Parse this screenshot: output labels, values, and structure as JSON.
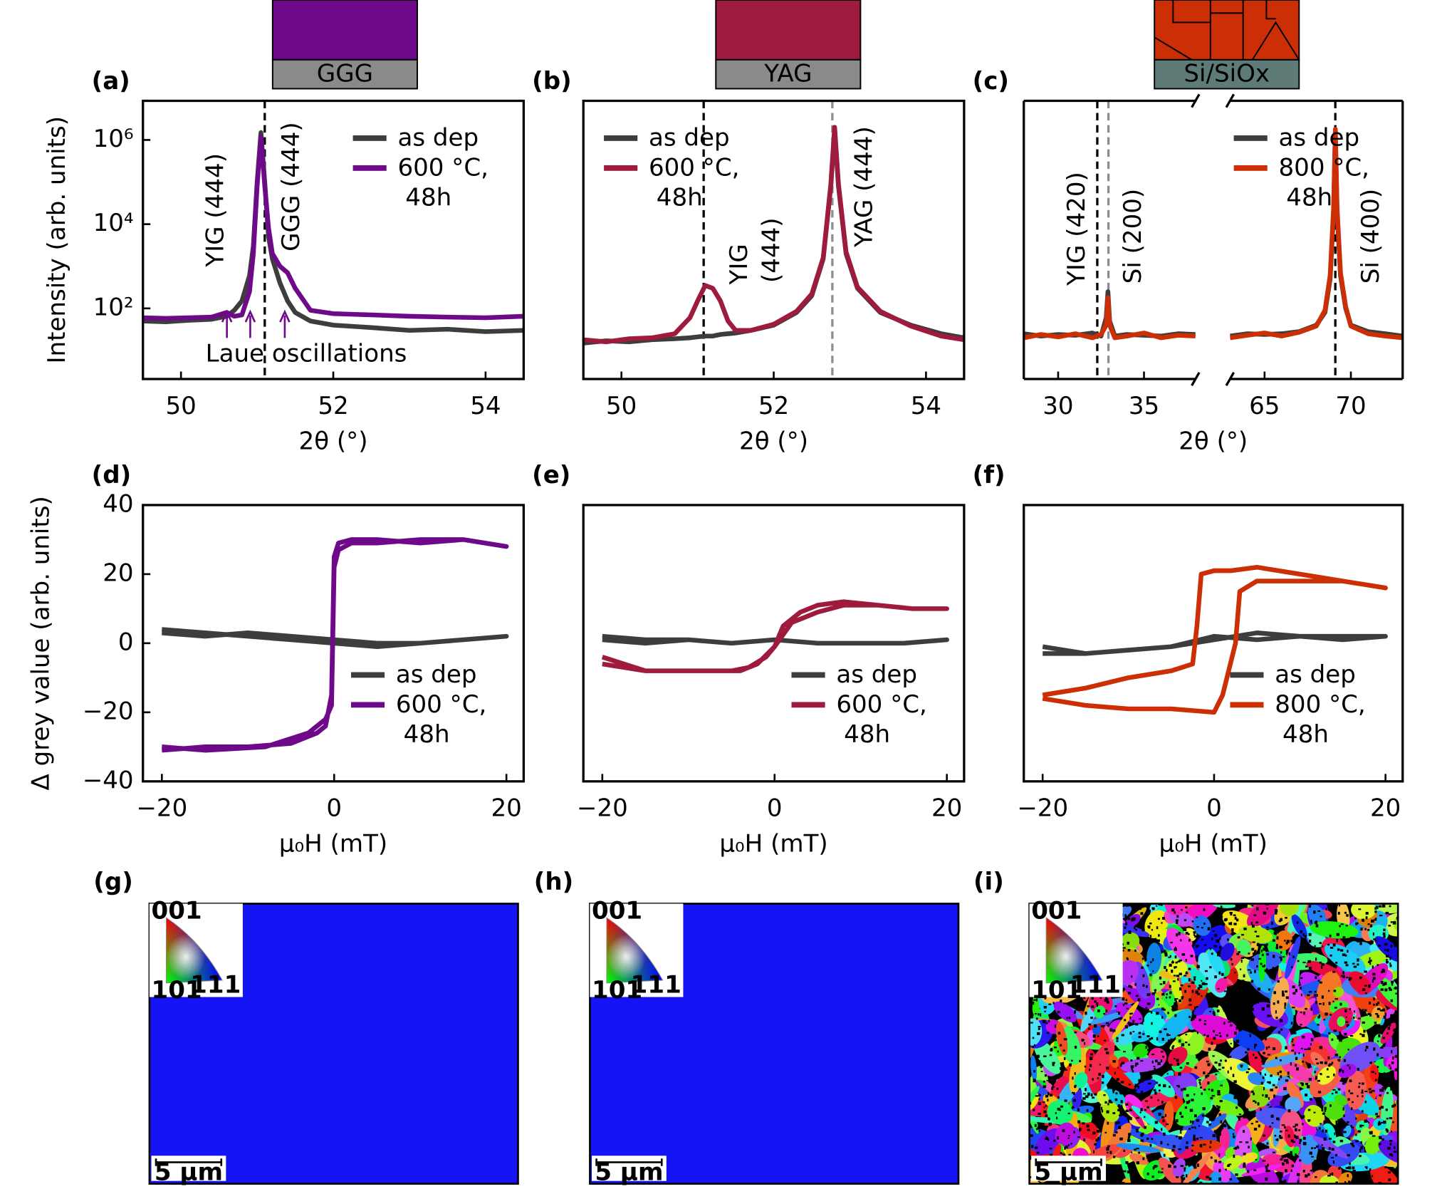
{
  "chart_data": [
    {
      "type": "line",
      "label": "(a)",
      "xlabel": "2θ (°)",
      "ylabel": "Intensity (arb. units)",
      "log_y": true,
      "xlim": [
        49.5,
        54.5
      ],
      "ylim": [
        2.1,
        8500000
      ],
      "xticks": [
        50,
        52,
        54
      ],
      "yticks": [
        {
          "value": 100,
          "label": "10²"
        },
        {
          "value": 10000,
          "label": "10⁴"
        },
        {
          "value": 1000000,
          "label": "10⁶"
        }
      ],
      "legend": "upper right",
      "vlines": [
        {
          "x": 51.1,
          "color": "#000000"
        }
      ],
      "annotations": [
        {
          "text": "YIG (444)",
          "color": "#000000"
        },
        {
          "text": "GGG (444)",
          "color": "#8c8c8c"
        },
        {
          "text": "Laue oscillations",
          "color": "#6e0a8a"
        }
      ],
      "series": [
        {
          "name": "as dep",
          "color": "#3d3d3d",
          "x": [
            49.5,
            49.8,
            50.1,
            50.4,
            50.6,
            50.7,
            50.8,
            50.9,
            50.95,
            51.0,
            51.05,
            51.1,
            51.15,
            51.2,
            51.3,
            51.4,
            51.5,
            51.7,
            52.0,
            52.5,
            53,
            53.5,
            54,
            54.5
          ],
          "values": [
            50,
            48,
            52,
            55,
            65,
            90,
            150,
            600,
            3000,
            100000,
            1500000,
            100000,
            5000,
            1500,
            400,
            150,
            80,
            50,
            40,
            35,
            30,
            32,
            28,
            30
          ]
        },
        {
          "name": "600 °C,\n 48h",
          "color": "#6e0a8a",
          "x": [
            49.5,
            49.8,
            50.1,
            50.4,
            50.6,
            50.7,
            50.8,
            50.9,
            50.95,
            51.0,
            51.05,
            51.1,
            51.15,
            51.2,
            51.3,
            51.4,
            51.5,
            51.7,
            52.0,
            52.5,
            53,
            53.5,
            54,
            54.5
          ],
          "values": [
            60,
            58,
            60,
            62,
            80,
            65,
            70,
            250,
            2000,
            80000,
            1200000,
            80000,
            8000,
            2000,
            1000,
            700,
            300,
            90,
            75,
            70,
            65,
            62,
            60,
            65
          ]
        }
      ]
    },
    {
      "type": "line",
      "label": "(b)",
      "xlabel": "2θ (°)",
      "log_y": true,
      "xlim": [
        49.5,
        54.5
      ],
      "ylim": [
        2.1,
        8500000
      ],
      "xticks": [
        50,
        52,
        54
      ],
      "legend": "upper left",
      "vlines": [
        {
          "x": 51.08,
          "color": "#000000"
        },
        {
          "x": 52.77,
          "color": "#8c8c8c"
        }
      ],
      "annotations": [
        {
          "text": "YIG",
          "color": "#000000"
        },
        {
          "text": "(444)",
          "color": "#000000"
        },
        {
          "text": "YAG (444)",
          "color": "#8c8c8c"
        }
      ],
      "series": [
        {
          "name": "as dep",
          "color": "#3d3d3d",
          "x": [
            49.5,
            49.8,
            50.1,
            50.4,
            50.7,
            50.9,
            51.0,
            51.1,
            51.2,
            51.3,
            51.4,
            51.5,
            51.7,
            52.0,
            52.3,
            52.5,
            52.65,
            52.75,
            52.8,
            52.85,
            52.95,
            53.1,
            53.4,
            53.8,
            54.2,
            54.5
          ],
          "values": [
            15,
            17,
            16,
            18,
            19,
            20,
            21,
            22,
            22,
            24,
            25,
            26,
            30,
            40,
            80,
            200,
            1500,
            80000,
            1800000,
            80000,
            2000,
            300,
            80,
            40,
            25,
            20
          ]
        },
        {
          "name": "600 °C,\n 48h",
          "color": "#9e1b3e",
          "x": [
            49.5,
            49.8,
            50.1,
            50.4,
            50.7,
            50.9,
            51.0,
            51.1,
            51.2,
            51.3,
            51.4,
            51.5,
            51.7,
            52.0,
            52.3,
            52.5,
            52.65,
            52.75,
            52.8,
            52.85,
            52.95,
            53.1,
            53.4,
            53.8,
            54.2,
            54.5
          ],
          "values": [
            18,
            16,
            19,
            20,
            25,
            60,
            150,
            350,
            300,
            150,
            50,
            30,
            30,
            42,
            85,
            220,
            1600,
            90000,
            2000000,
            90000,
            2200,
            320,
            85,
            38,
            22,
            18
          ]
        }
      ]
    },
    {
      "type": "line",
      "label": "(c)",
      "xlabel": "2θ (°)",
      "log_y": true,
      "xlim_segments": [
        [
          28,
          38
        ],
        [
          63,
          73
        ]
      ],
      "ylim": [
        2.1,
        8500000
      ],
      "xticks": [
        30,
        35,
        65,
        70
      ],
      "legend": "upper right",
      "vlines": [
        {
          "x": 32.28,
          "color": "#000000"
        },
        {
          "x": 32.93,
          "color": "#8c8c8c"
        },
        {
          "x": 69.1,
          "color": "#000000"
        }
      ],
      "annotations": [
        {
          "text": "YIG (420)",
          "color": "#000000"
        },
        {
          "text": "Si (200)",
          "color": "#8c8c8c"
        },
        {
          "text": "Si (400)",
          "color": "#8c8c8c"
        }
      ],
      "series": [
        {
          "name": "as dep",
          "color": "#3d3d3d",
          "x": [
            28,
            29,
            30,
            31,
            32,
            32.5,
            32.8,
            32.9,
            33.0,
            33.3,
            34,
            35,
            36,
            37,
            38,
            null,
            63,
            64,
            65,
            66,
            67,
            68,
            68.5,
            68.8,
            69.0,
            69.1,
            69.2,
            69.4,
            69.7,
            70,
            71,
            72,
            73
          ],
          "values": [
            25,
            22,
            24,
            23,
            26,
            22,
            60,
            250,
            50,
            22,
            24,
            23,
            22,
            25,
            24,
            null,
            22,
            25,
            24,
            25,
            28,
            40,
            80,
            500,
            20000,
            1500000,
            20000,
            600,
            100,
            40,
            28,
            25,
            22
          ]
        },
        {
          "name": "800 °C,\n 48h",
          "color": "#cc2e06",
          "x": [
            28,
            29,
            30,
            31,
            32,
            32.5,
            32.8,
            32.9,
            33.0,
            33.3,
            34,
            35,
            36,
            37,
            38,
            null,
            63,
            64,
            65,
            66,
            67,
            68,
            68.5,
            68.8,
            69.0,
            69.1,
            69.2,
            69.4,
            69.7,
            70,
            71,
            72,
            73
          ],
          "values": [
            20,
            24,
            21,
            25,
            20,
            24,
            40,
            180,
            40,
            20,
            22,
            26,
            20,
            23,
            22,
            null,
            20,
            23,
            26,
            22,
            27,
            38,
            90,
            600,
            25000,
            1800000,
            25000,
            700,
            110,
            38,
            25,
            22,
            20
          ]
        }
      ]
    },
    {
      "type": "line",
      "label": "(d)",
      "xlabel": "μ₀H (mT)",
      "ylabel": "Δ grey value (arb. units)",
      "xlim": [
        -22.2,
        22
      ],
      "ylim": [
        -40,
        40
      ],
      "xticks": [
        {
          "value": -20,
          "label": "−20"
        },
        0,
        20
      ],
      "yticks": [
        {
          "value": -40,
          "label": "−40"
        },
        {
          "value": -20,
          "label": "−20"
        },
        0,
        20,
        40
      ],
      "legend": "lower right",
      "series": [
        {
          "name": "as dep",
          "color": "#3d3d3d",
          "x": [
            -20,
            -15,
            -10,
            -5,
            0,
            5,
            10,
            15,
            20,
            15,
            10,
            5,
            0,
            -5,
            -10,
            -15,
            -20
          ],
          "values": [
            3,
            2,
            3,
            2,
            1,
            0,
            0,
            1,
            2,
            1,
            0,
            -1,
            0,
            1,
            2,
            3,
            4
          ]
        },
        {
          "name": "600 °C,\n 48h",
          "color": "#6e0a8a",
          "x": [
            -20,
            -15,
            -10,
            -5,
            -2,
            -1,
            -0.3,
            0,
            0.5,
            2,
            5,
            10,
            15,
            20,
            15,
            10,
            5,
            2,
            0.5,
            0,
            -0.3,
            -1,
            -3,
            -8,
            -15,
            -20
          ],
          "values": [
            -31,
            -30,
            -30,
            -29,
            -26,
            -24,
            -15,
            25,
            29,
            30,
            30,
            29,
            30,
            28,
            30,
            30,
            29,
            29,
            27,
            22,
            -18,
            -22,
            -26,
            -30,
            -31,
            -30
          ]
        }
      ]
    },
    {
      "type": "line",
      "label": "(e)",
      "xlabel": "μ₀H (mT)",
      "xlim": [
        -22.2,
        22
      ],
      "ylim": [
        -40,
        40
      ],
      "xticks": [
        {
          "value": -20,
          "label": "−20"
        },
        0,
        20
      ],
      "legend": "lower right",
      "series": [
        {
          "name": "as dep",
          "color": "#3d3d3d",
          "x": [
            -20,
            -15,
            -10,
            -5,
            0,
            5,
            10,
            15,
            20,
            15,
            10,
            5,
            0,
            -5,
            -10,
            -15,
            -20
          ],
          "values": [
            2,
            1,
            1,
            0,
            1,
            0,
            0,
            0,
            1,
            0,
            0,
            0,
            1,
            0,
            1,
            0,
            1
          ]
        },
        {
          "name": "600 °C,\n 48h",
          "color": "#9e1b3e",
          "x": [
            -20,
            -15,
            -10,
            -5,
            -3,
            -1,
            0,
            2,
            5,
            8,
            12,
            16,
            20,
            16,
            12,
            8,
            5,
            3,
            1,
            0,
            -2,
            -4,
            -8,
            -15,
            -20
          ],
          "values": [
            -4,
            -8,
            -8,
            -8,
            -7,
            -4,
            -1,
            6,
            9,
            11,
            11,
            10,
            10,
            10,
            11,
            12,
            11,
            9,
            5,
            -1,
            -6,
            -8,
            -8,
            -8,
            -6
          ]
        }
      ]
    },
    {
      "type": "line",
      "label": "(f)",
      "xlabel": "μ₀H (mT)",
      "xlim": [
        -22.2,
        22
      ],
      "ylim": [
        -40,
        40
      ],
      "xticks": [
        {
          "value": -20,
          "label": "−20"
        },
        0,
        20
      ],
      "legend": "lower right",
      "series": [
        {
          "name": "as dep",
          "color": "#3d3d3d",
          "x": [
            -20,
            -15,
            -10,
            -5,
            0,
            5,
            10,
            15,
            20,
            15,
            10,
            5,
            0,
            -5,
            -10,
            -15,
            -20
          ],
          "values": [
            -1,
            -3,
            -2,
            -1,
            1,
            3,
            2,
            2,
            2,
            1,
            2,
            1,
            2,
            -1,
            -2,
            -3,
            -3
          ]
        },
        {
          "name": "800 °C,\n 48h",
          "color": "#cc2e06",
          "x": [
            -20,
            -15,
            -10,
            -5,
            0,
            1,
            2.5,
            3,
            5,
            10,
            15,
            20,
            15,
            10,
            5,
            2,
            0,
            -1.5,
            -2,
            -2.5,
            -5,
            -10,
            -15,
            -20
          ],
          "values": [
            -16,
            -18,
            -19,
            -19,
            -20,
            -15,
            0,
            15,
            18,
            18,
            18,
            16,
            18,
            20,
            22,
            21,
            21,
            20,
            5,
            -6,
            -8,
            -10,
            -13,
            -15
          ]
        }
      ]
    }
  ],
  "substrates": [
    {
      "label": "GGG",
      "color": "#6e0a8a",
      "base_color": "#8a8a8a"
    },
    {
      "label": "YAG",
      "color": "#9e1b3e",
      "base_color": "#8a8a8a"
    },
    {
      "label": "Si/SiOx",
      "color": "#cc2e06",
      "base_color": "#5e7b78"
    }
  ],
  "images": [
    {
      "label": "(g)",
      "poles": [
        "001",
        "101",
        "111"
      ],
      "scale_bar": "5 µm",
      "color": "#1414f5"
    },
    {
      "label": "(h)",
      "poles": [
        "001",
        "101",
        "111"
      ],
      "scale_bar": "5 µm",
      "color": "#1414f5"
    },
    {
      "label": "(i)",
      "poles": [
        "001",
        "101",
        "111"
      ],
      "scale_bar": "5 µm",
      "color": "#000000"
    }
  ]
}
